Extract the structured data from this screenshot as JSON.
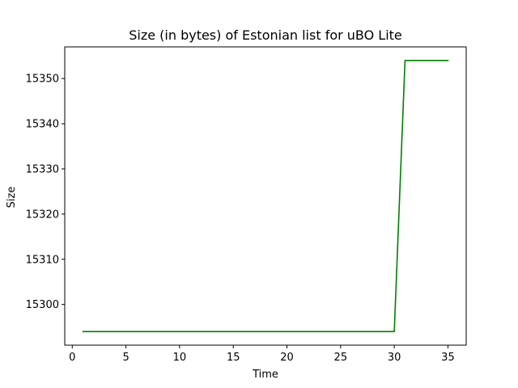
{
  "chart_data": {
    "type": "line",
    "title": "Size (in bytes) of Estonian list for uBO Lite",
    "xlabel": "Time",
    "ylabel": "Size",
    "xlim": [
      -0.7,
      36.7
    ],
    "ylim": [
      15291.0,
      15357.0
    ],
    "xticks": [
      0,
      5,
      10,
      15,
      20,
      25,
      30,
      35
    ],
    "yticks": [
      15300,
      15310,
      15320,
      15330,
      15340,
      15350
    ],
    "grid": false,
    "legend": "none",
    "series": [
      {
        "color": "#008000",
        "x": [
          1,
          2,
          3,
          4,
          5,
          6,
          7,
          8,
          9,
          10,
          11,
          12,
          13,
          14,
          15,
          16,
          17,
          18,
          19,
          20,
          21,
          22,
          23,
          24,
          25,
          26,
          27,
          28,
          29,
          30,
          31,
          32,
          33,
          34,
          35
        ],
        "y": [
          15294,
          15294,
          15294,
          15294,
          15294,
          15294,
          15294,
          15294,
          15294,
          15294,
          15294,
          15294,
          15294,
          15294,
          15294,
          15294,
          15294,
          15294,
          15294,
          15294,
          15294,
          15294,
          15294,
          15294,
          15294,
          15294,
          15294,
          15294,
          15294,
          15294,
          15354,
          15354,
          15354,
          15354,
          15354
        ]
      }
    ]
  }
}
